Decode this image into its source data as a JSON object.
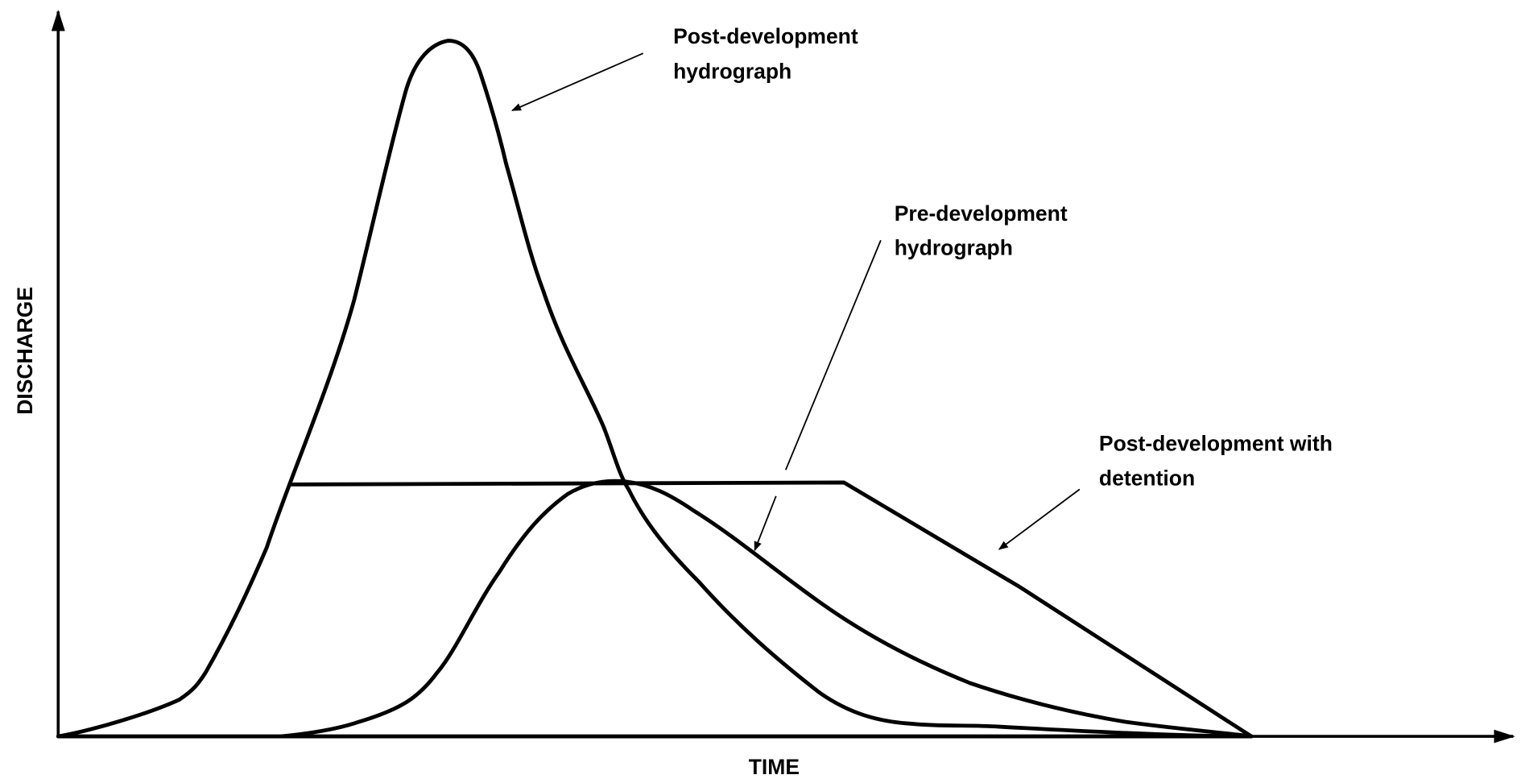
{
  "axes": {
    "y_label": "DISCHARGE",
    "x_label": "TIME"
  },
  "annotations": [
    {
      "lines": [
        "Post-development",
        "hydrograph"
      ]
    },
    {
      "lines": [
        "Pre-development",
        "hydrograph"
      ]
    },
    {
      "lines": [
        "Post-development with",
        "detention"
      ]
    }
  ]
}
